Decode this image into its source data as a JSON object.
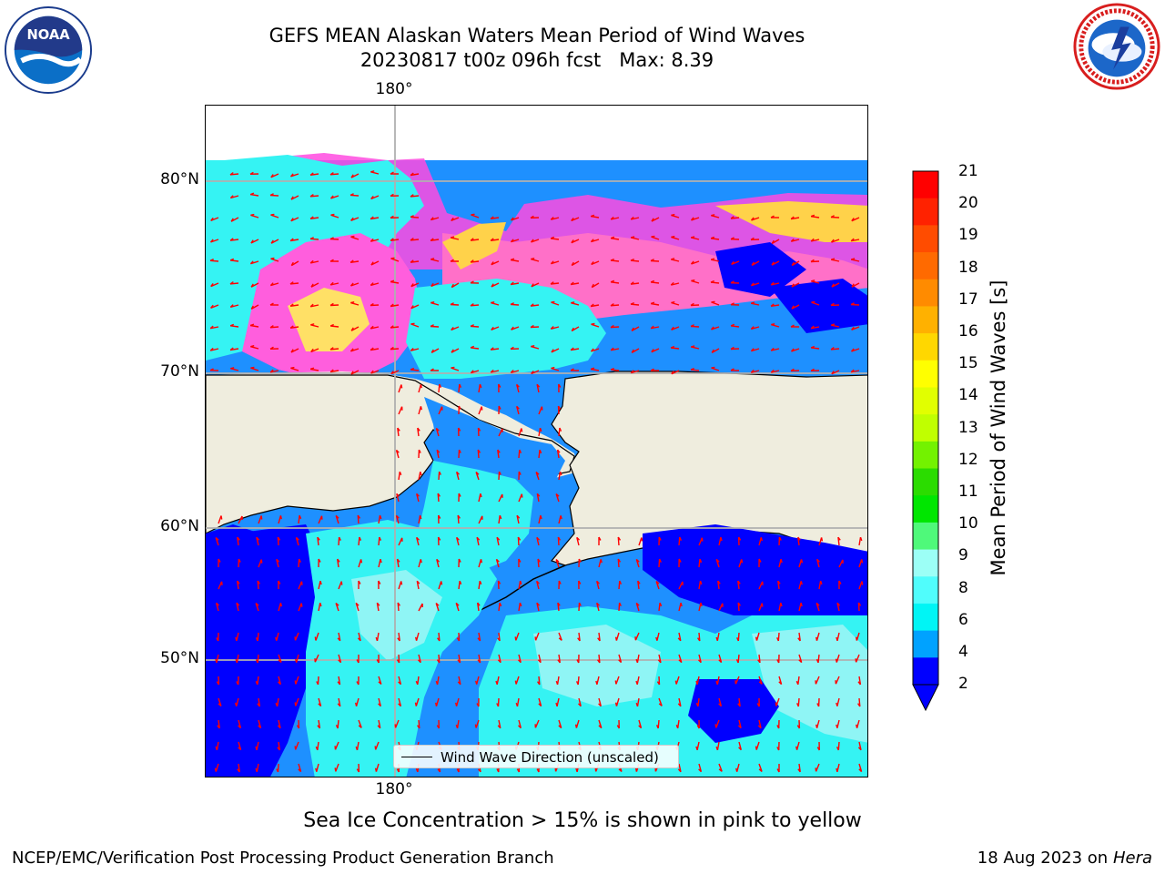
{
  "title": {
    "line1": "GEFS MEAN Alaskan Waters Mean Period of Wind Waves",
    "line2": "20230817 t00z 096h fcst   Max: 8.39"
  },
  "logos": {
    "left": "noaa-logo",
    "right": "nws-logo",
    "noaa_text": "NOAA"
  },
  "map": {
    "lon_label_top": "180°",
    "lon_label_bottom": "180°",
    "lat_labels": [
      "80°N",
      "70°N",
      "60°N",
      "50°N"
    ],
    "legend_label": "Wind Wave Direction (unscaled)",
    "colors": {
      "land": "#efedde",
      "coast": "#000000",
      "arrow": "#ff0000",
      "grid": "#b0b0b0"
    }
  },
  "colorbar": {
    "title": "Mean Period of Wind Waves [s]",
    "ticks": [
      "21",
      "20",
      "19",
      "18",
      "17",
      "16",
      "15",
      "14",
      "13",
      "12",
      "11",
      "10",
      "9",
      "8",
      "6",
      "4",
      "2"
    ],
    "colors_top_to_bottom": [
      "#ff0000",
      "#ff2200",
      "#ff4c00",
      "#ff6a00",
      "#ff8b00",
      "#ffb100",
      "#ffd700",
      "#ffff00",
      "#e1ff00",
      "#c0ff00",
      "#73f200",
      "#2bdc00",
      "#00e600",
      "#4ff97a",
      "#9cfff6",
      "#50fdfc",
      "#00f5f5",
      "#00a2ff",
      "#0000ff"
    ],
    "extend_color": "#0000ff"
  },
  "subtitle": "Sea Ice Concentration > 15% is shown in pink to yellow",
  "footer": {
    "left": "NCEP/EMC/Verification Post Processing Product Generation Branch",
    "right_date": "18 Aug 2023 on",
    "right_host": "Hera"
  }
}
